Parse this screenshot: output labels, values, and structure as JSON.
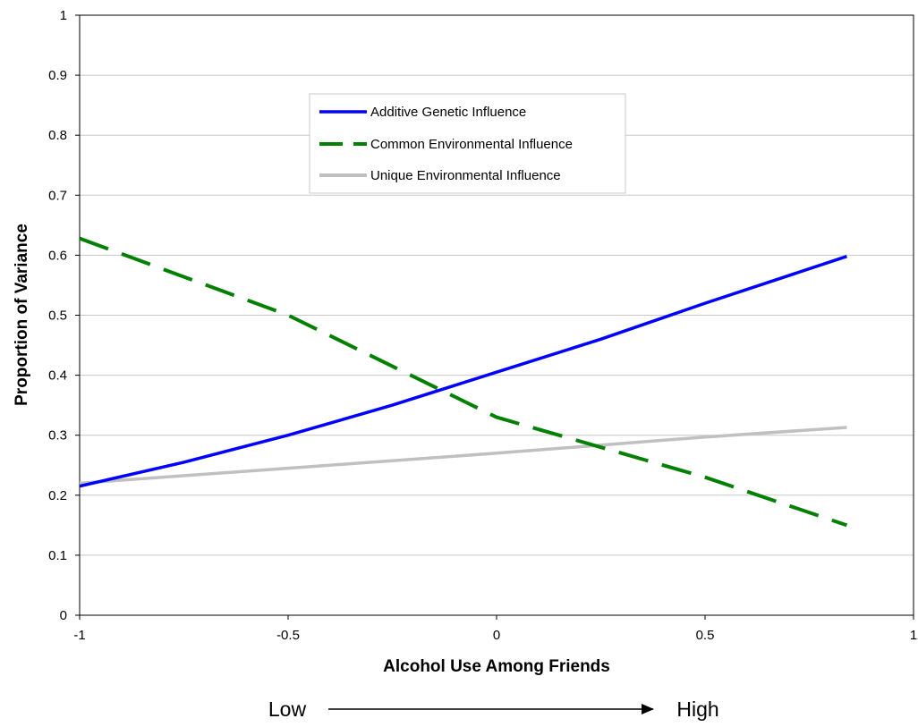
{
  "chart_data": {
    "type": "line",
    "title": "",
    "xlabel": "Alcohol Use Among Friends",
    "ylabel": "Proportion of Variance",
    "xlim": [
      -1,
      1
    ],
    "ylim": [
      0,
      1
    ],
    "x_ticks": [
      "-1",
      "-0.5",
      "0",
      "0.5",
      "1"
    ],
    "y_ticks": [
      "0",
      "0.1",
      "0.2",
      "0.3",
      "0.4",
      "0.5",
      "0.6",
      "0.7",
      "0.8",
      "0.9",
      "1"
    ],
    "grid": "horizontal",
    "legend_position": "upper-center",
    "series": [
      {
        "name": "Additive Genetic Influence",
        "color": "#0000ff",
        "style": "solid",
        "x": [
          -1,
          -0.75,
          -0.5,
          -0.25,
          0,
          0.25,
          0.5,
          0.84
        ],
        "y": [
          0.215,
          0.255,
          0.3,
          0.35,
          0.405,
          0.46,
          0.52,
          0.598
        ]
      },
      {
        "name": "Common Environmental Influence",
        "color": "#008000",
        "style": "dashed",
        "x": [
          -1,
          -0.5,
          0,
          0.5,
          0.84
        ],
        "y": [
          0.628,
          0.5,
          0.33,
          0.23,
          0.15
        ]
      },
      {
        "name": "Unique Environmental Influence",
        "color": "#c0c0c0",
        "style": "solid",
        "x": [
          -1,
          -0.5,
          0,
          0.5,
          0.84
        ],
        "y": [
          0.22,
          0.245,
          0.27,
          0.297,
          0.313
        ]
      }
    ],
    "range_annotation": {
      "low_label": "Low",
      "high_label": "High"
    }
  }
}
